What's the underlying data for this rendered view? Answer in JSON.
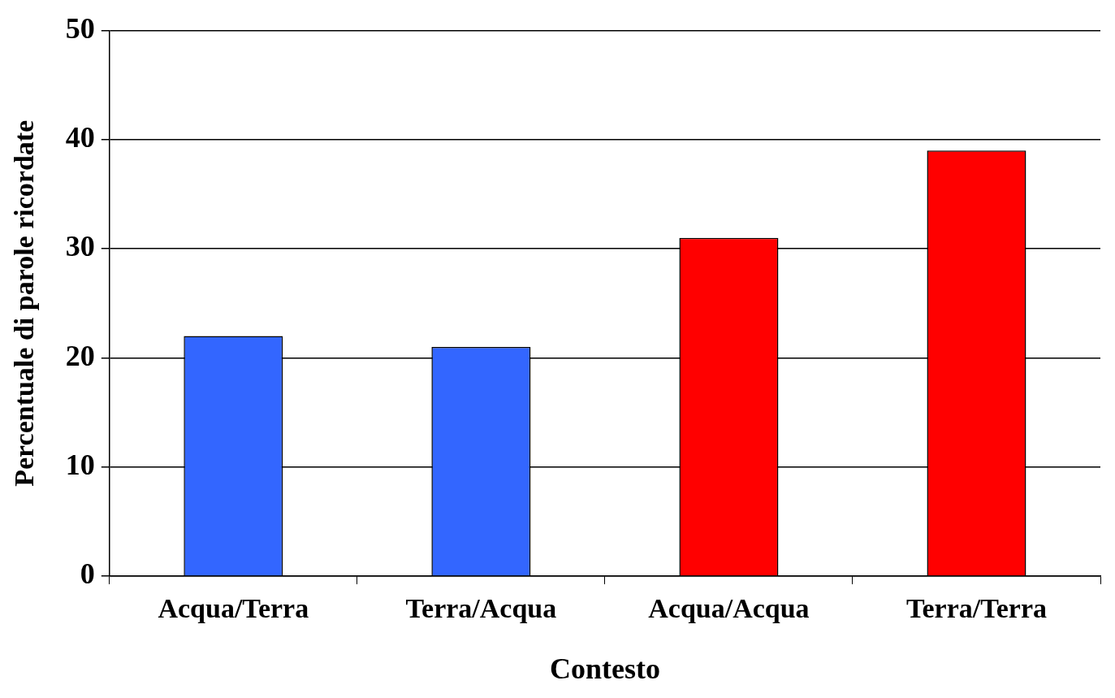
{
  "chart_data": {
    "type": "bar",
    "xlabel": "Contesto",
    "ylabel": "Percentuale di parole ricordate",
    "categories": [
      "Acqua/Terra",
      "Terra/Acqua",
      "Acqua/Acqua",
      "Terra/Terra"
    ],
    "values": [
      22,
      21,
      31,
      39
    ],
    "colors": [
      "#3366ff",
      "#3366ff",
      "#ff0000",
      "#ff0000"
    ],
    "ylim": [
      0,
      50
    ],
    "yticks": [
      0,
      10,
      20,
      30,
      40,
      50
    ],
    "grid": "y",
    "legend": false
  }
}
